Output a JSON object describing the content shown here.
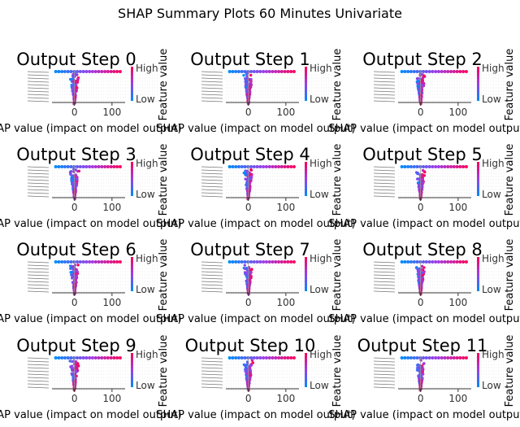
{
  "figure": {
    "title": "SHAP Summary Plots 60 Minutes Univariate"
  },
  "colors": {
    "low": "#008bfb",
    "mid": "#9b3ee8",
    "high": "#ff0052",
    "axis": "#333333",
    "grid": "#cccccc"
  },
  "chart_data": [
    {
      "type": "scatter",
      "title": "Output Step 0",
      "xlabel": "SHAP value (impact on model output)",
      "colorbar_label": "Feature value",
      "colorbar_high": "High",
      "colorbar_low": "Low",
      "xticks": [
        0,
        100
      ],
      "xlim": [
        -60,
        135
      ]
    },
    {
      "type": "scatter",
      "title": "Output Step 1",
      "xlabel": "SHAP value (impact on model output)",
      "colorbar_label": "Feature value",
      "colorbar_high": "High",
      "colorbar_low": "Low",
      "xticks": [
        0,
        100
      ],
      "xlim": [
        -60,
        135
      ]
    },
    {
      "type": "scatter",
      "title": "Output Step 2",
      "xlabel": "SHAP value (impact on model output)",
      "colorbar_label": "Feature value",
      "colorbar_high": "High",
      "colorbar_low": "Low",
      "xticks": [
        0,
        100
      ],
      "xlim": [
        -60,
        135
      ]
    },
    {
      "type": "scatter",
      "title": "Output Step 3",
      "xlabel": "SHAP value (impact on model output)",
      "colorbar_label": "Feature value",
      "colorbar_high": "High",
      "colorbar_low": "Low",
      "xticks": [
        0,
        100
      ],
      "xlim": [
        -60,
        135
      ]
    },
    {
      "type": "scatter",
      "title": "Output Step 4",
      "xlabel": "SHAP value (impact on model output)",
      "colorbar_label": "Feature value",
      "colorbar_high": "High",
      "colorbar_low": "Low",
      "xticks": [
        0,
        100
      ],
      "xlim": [
        -60,
        135
      ]
    },
    {
      "type": "scatter",
      "title": "Output Step 5",
      "xlabel": "SHAP value (impact on model output)",
      "colorbar_label": "Feature value",
      "colorbar_high": "High",
      "colorbar_low": "Low",
      "xticks": [
        0,
        100
      ],
      "xlim": [
        -60,
        135
      ]
    },
    {
      "type": "scatter",
      "title": "Output Step 6",
      "xlabel": "SHAP value (impact on model output)",
      "colorbar_label": "Feature value",
      "colorbar_high": "High",
      "colorbar_low": "Low",
      "xticks": [
        0,
        100
      ],
      "xlim": [
        -60,
        135
      ]
    },
    {
      "type": "scatter",
      "title": "Output Step 7",
      "xlabel": "SHAP value (impact on model output)",
      "colorbar_label": "Feature value",
      "colorbar_high": "High",
      "colorbar_low": "Low",
      "xticks": [
        0,
        100
      ],
      "xlim": [
        -60,
        135
      ]
    },
    {
      "type": "scatter",
      "title": "Output Step 8",
      "xlabel": "SHAP value (impact on model output)",
      "colorbar_label": "Feature value",
      "colorbar_high": "High",
      "colorbar_low": "Low",
      "xticks": [
        0,
        100
      ],
      "xlim": [
        -60,
        135
      ]
    },
    {
      "type": "scatter",
      "title": "Output Step 9",
      "xlabel": "SHAP value (impact on model output)",
      "colorbar_label": "Feature value",
      "colorbar_high": "High",
      "colorbar_low": "Low",
      "xticks": [
        0,
        100
      ],
      "xlim": [
        -60,
        135
      ]
    },
    {
      "type": "scatter",
      "title": "Output Step 10",
      "xlabel": "SHAP value (impact on model output)",
      "colorbar_label": "Feature value",
      "colorbar_high": "High",
      "colorbar_low": "Low",
      "xticks": [
        0,
        100
      ],
      "xlim": [
        -60,
        135
      ]
    },
    {
      "type": "scatter",
      "title": "Output Step 11",
      "xlabel": "SHAP value (impact on model output)",
      "colorbar_label": "Feature value",
      "colorbar_high": "High",
      "colorbar_low": "Low",
      "xticks": [
        0,
        100
      ],
      "xlim": [
        -60,
        135
      ]
    }
  ]
}
